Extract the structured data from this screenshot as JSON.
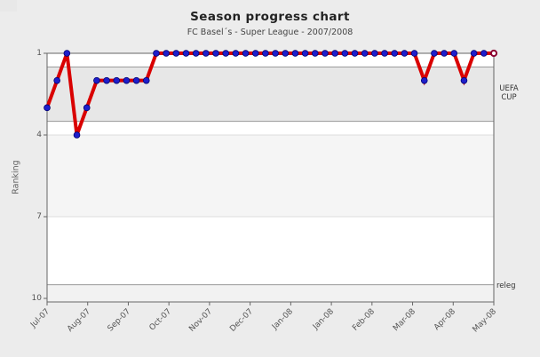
{
  "chart_data": {
    "type": "line",
    "title": "Season progress chart",
    "subtitle": "FC Basel´s - Super League - 2007/2008",
    "ylabel": "Ranking",
    "y_ticks": [
      1,
      4,
      7,
      10
    ],
    "y_axis_inverted": true,
    "ylim": [
      1,
      10.13
    ],
    "x_tick_labels": [
      "Jul-07",
      "Aug-07",
      "Sep-07",
      "Oct-07",
      "Nov-07",
      "Dec-07",
      "Jan-08",
      "Jan-08",
      "Feb-08",
      "Mar-08",
      "Apr-08",
      "May-08"
    ],
    "series": [
      {
        "name": "ranking",
        "values": [
          3,
          2,
          1,
          4,
          3,
          2,
          2,
          2,
          2,
          2,
          2,
          1,
          1,
          1,
          1,
          1,
          1,
          1,
          1,
          1,
          1,
          1,
          1,
          1,
          1,
          1,
          1,
          1,
          1,
          1,
          1,
          1,
          1,
          1,
          1,
          1,
          1,
          1,
          2,
          1,
          1,
          1,
          2,
          1,
          1,
          1
        ]
      }
    ],
    "final_point_highlighted": true,
    "bands": [
      {
        "id": "uefa-cup",
        "label": "UEFA CUP",
        "from": 1.5,
        "to": 3.5,
        "fill": "#e7e7e7",
        "edge": "#999999"
      },
      {
        "id": "mid-table",
        "label": "",
        "from": 4,
        "to": 7,
        "fill": "#f5f5f5",
        "edge": "#dddddd"
      },
      {
        "id": "relegation",
        "label": "releg",
        "from": 9.5,
        "to": 10.13,
        "fill": "#f2f2f2",
        "edge": "#999999"
      }
    ],
    "colors": {
      "background": "#ececec",
      "plot_background": "#ffffff",
      "axis_border": "#666666",
      "line": "#d90000",
      "marker": "#1e1ecb",
      "marker_edge": "#000070",
      "final_marker_fill": "#ffffff",
      "final_marker_edge": "#8b0030"
    },
    "legend": "none",
    "grid": "bands-only"
  },
  "annotations": {
    "uefa_line1": "UEFA",
    "uefa_line2": "CUP",
    "releg": "releg"
  }
}
